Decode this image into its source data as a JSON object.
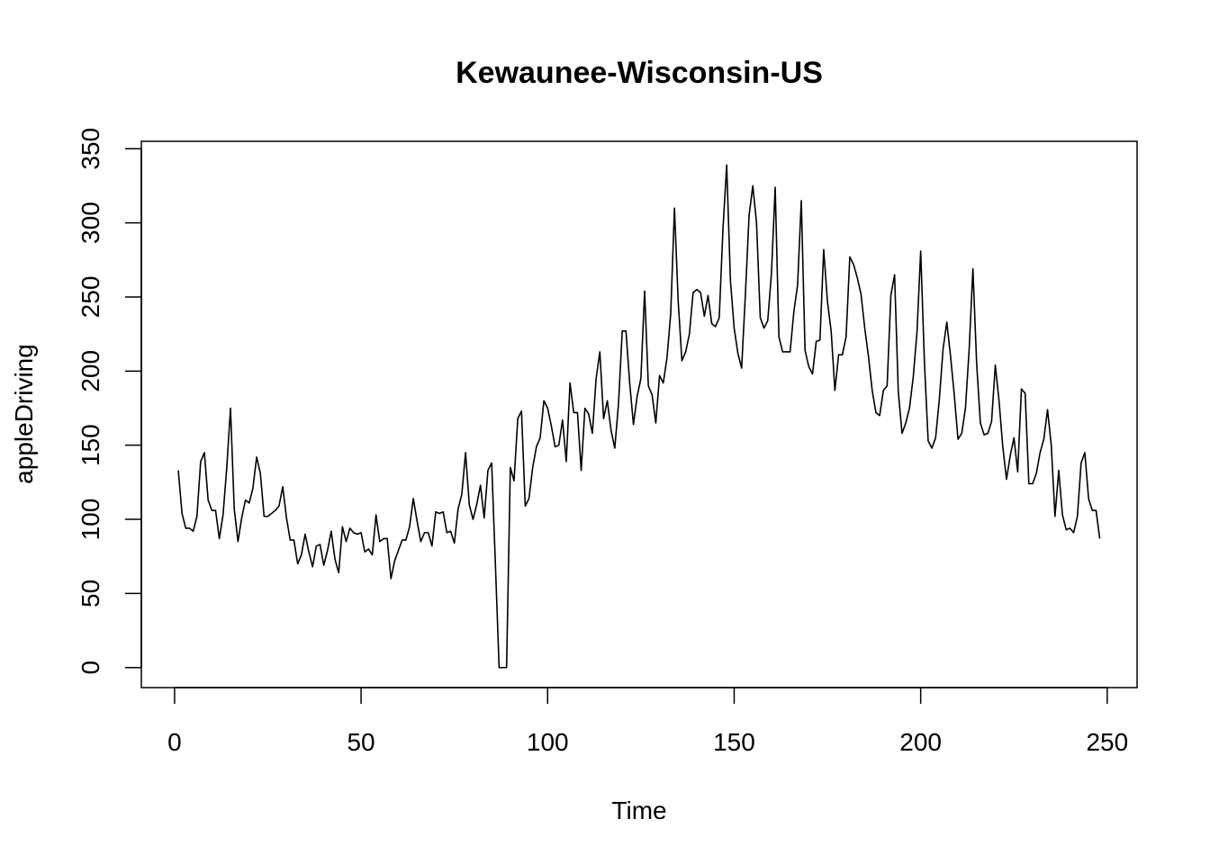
{
  "chart_data": {
    "type": "line",
    "title": "Kewaunee-Wisconsin-US",
    "xlabel": "Time",
    "ylabel": "appleDriving",
    "xlim": [
      -8.9,
      258
    ],
    "ylim": [
      -13.5,
      355
    ],
    "x_ticks": [
      0,
      50,
      100,
      150,
      200,
      250
    ],
    "y_ticks": [
      0,
      50,
      100,
      150,
      200,
      250,
      300,
      350
    ],
    "grid": false,
    "series": [
      {
        "x_start": 1,
        "x_step": 1,
        "values": [
          133,
          104,
          94,
          94,
          92,
          102,
          139,
          145,
          113,
          106,
          106,
          87,
          103,
          135,
          175,
          107,
          85,
          101,
          113,
          111,
          121,
          142,
          131,
          102,
          102,
          104,
          106,
          109,
          122,
          101,
          86,
          86,
          70,
          76,
          90,
          78,
          68,
          82,
          83,
          69,
          79,
          92,
          73,
          64,
          95,
          85,
          94,
          91,
          90,
          91,
          78,
          80,
          76,
          103,
          85,
          87,
          87,
          60,
          72,
          79,
          86,
          86,
          95,
          114,
          99,
          85,
          91,
          91,
          82,
          105,
          104,
          105,
          91,
          92,
          84,
          107,
          117,
          145,
          110,
          100,
          110,
          123,
          101,
          133,
          138,
          70,
          0,
          0,
          0,
          135,
          126,
          168,
          173,
          109,
          114,
          135,
          149,
          155,
          180,
          175,
          163,
          149,
          150,
          167,
          139,
          192,
          172,
          172,
          133,
          175,
          171,
          158,
          195,
          213,
          168,
          180,
          160,
          148,
          178,
          227,
          227,
          192,
          164,
          183,
          195,
          254,
          190,
          184,
          165,
          197,
          192,
          209,
          239,
          310,
          247,
          207,
          213,
          225,
          253,
          255,
          253,
          237,
          251,
          232,
          230,
          236,
          296,
          339,
          261,
          229,
          212,
          202,
          251,
          305,
          325,
          300,
          236,
          229,
          234,
          266,
          324,
          223,
          213,
          213,
          213,
          240,
          258,
          315,
          214,
          203,
          198,
          220,
          221,
          282,
          247,
          227,
          187,
          211,
          211,
          223,
          277,
          272,
          263,
          252,
          229,
          210,
          187,
          172,
          170,
          187,
          190,
          251,
          265,
          186,
          158,
          165,
          175,
          196,
          226,
          281,
          206,
          153,
          148,
          155,
          181,
          215,
          233,
          210,
          184,
          154,
          158,
          175,
          215,
          269,
          205,
          165,
          157,
          158,
          166,
          204,
          180,
          149,
          127,
          143,
          155,
          132,
          188,
          185,
          124,
          124,
          131,
          145,
          154,
          174,
          150,
          102,
          133,
          103,
          93,
          94,
          91,
          102,
          138,
          145,
          114,
          106,
          106,
          87
        ]
      }
    ]
  }
}
